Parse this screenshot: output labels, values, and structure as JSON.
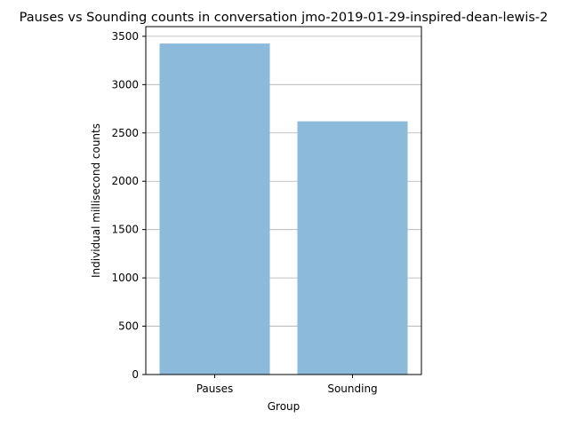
{
  "chart_data": {
    "type": "bar",
    "title": "Pauses vs Sounding counts in conversation jmo-2019-01-29-inspired-dean-lewis-2",
    "xlabel": "Group",
    "ylabel": "Individual millisecond counts",
    "categories": [
      "Pauses",
      "Sounding"
    ],
    "values": [
      3425,
      2620
    ],
    "ylim": [
      0,
      3600
    ],
    "yticks": [
      0,
      500,
      1000,
      1500,
      2000,
      2500,
      3000,
      3500
    ],
    "ytick_labels": [
      "0",
      "500",
      "1000",
      "1500",
      "2000",
      "2500",
      "3000",
      "3500"
    ],
    "grid": "y",
    "bar_color": "#8cbadb",
    "grid_color": "#b0b0b0"
  }
}
